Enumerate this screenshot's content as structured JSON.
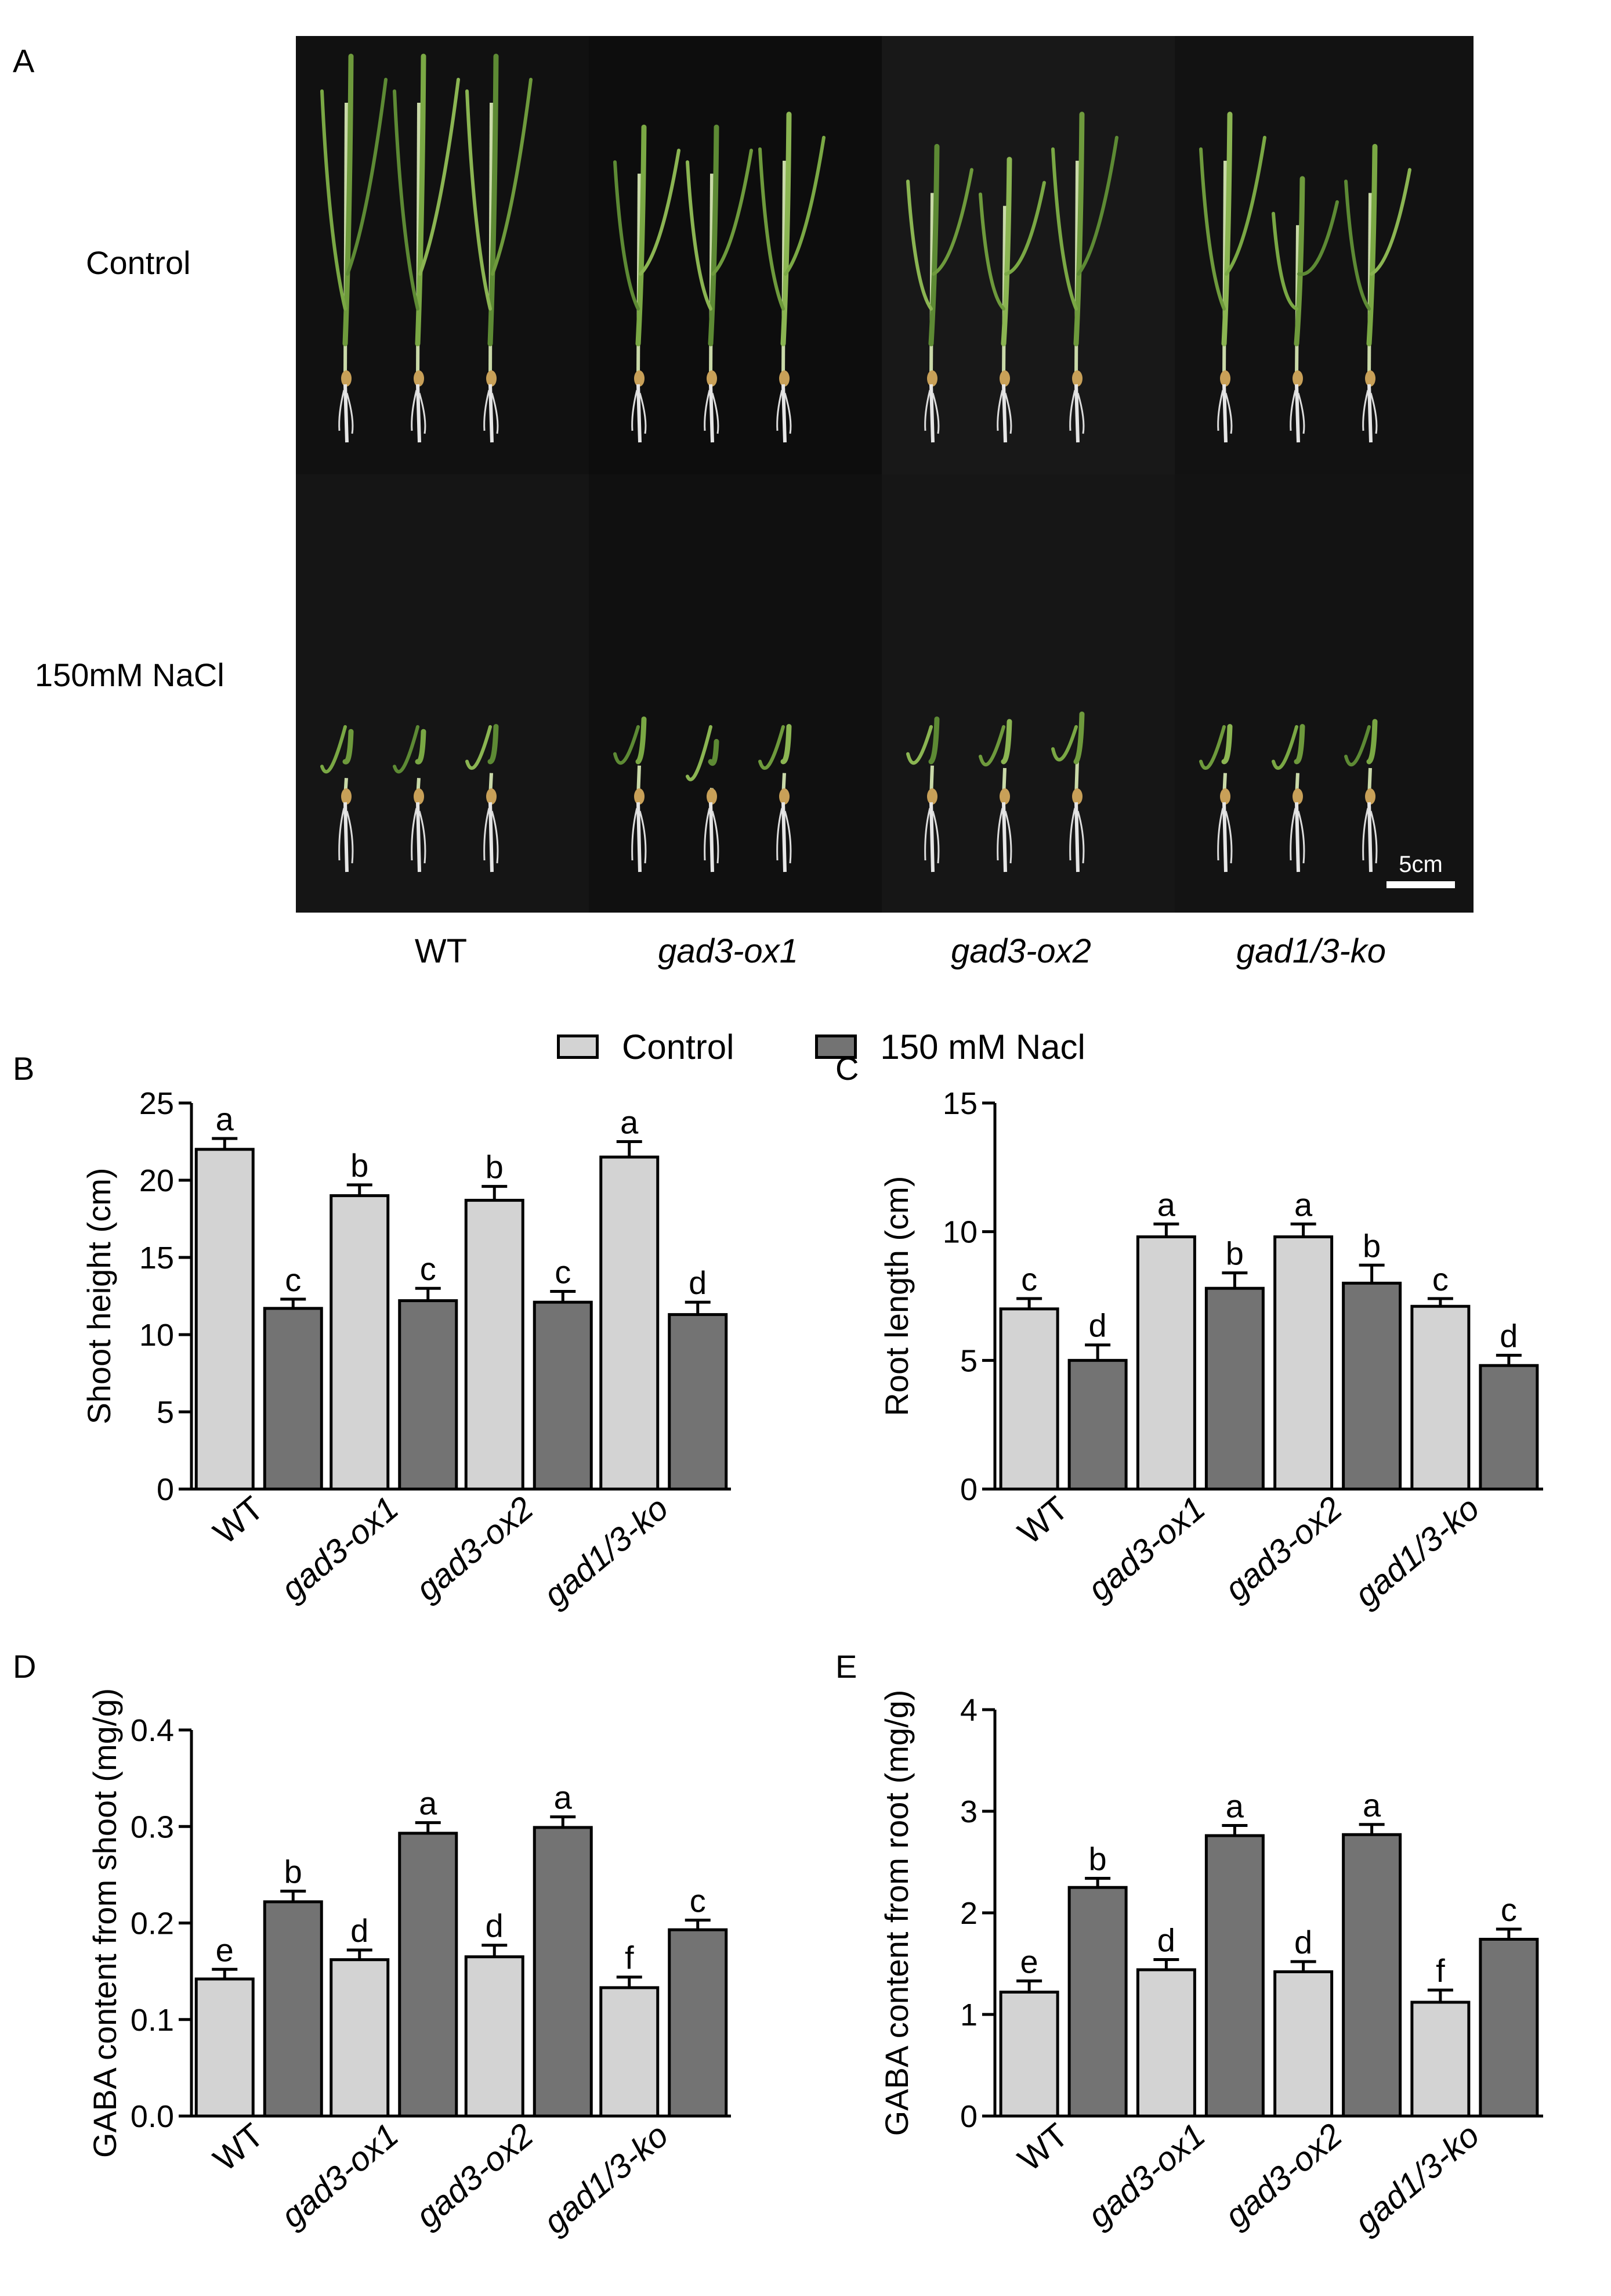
{
  "figure": {
    "panel_a": {
      "letter": "A",
      "row_labels": [
        "Control",
        "150mM NaCl"
      ],
      "genotypes": [
        "WT",
        "gad3-ox1",
        "gad3-ox2",
        "gad1/3-ko"
      ],
      "scale_bar": "5cm"
    },
    "legend": [
      {
        "label": "Control",
        "color": "#d3d3d3"
      },
      {
        "label": "150 mM Nacl",
        "color": "#737373"
      }
    ]
  },
  "chart_data": [
    {
      "panel": "B",
      "type": "bar",
      "categories": [
        "WT",
        "gad3-ox1",
        "gad3-ox2",
        "gad1/3-ko"
      ],
      "ylabel": "Shoot height (cm)",
      "ylim": [
        0,
        25
      ],
      "yticks": [
        0,
        5,
        10,
        15,
        20,
        25
      ],
      "series": [
        {
          "name": "Control",
          "color": "#d3d3d3",
          "values": [
            22.0,
            19.0,
            18.7,
            21.5
          ],
          "errors": [
            0.7,
            0.7,
            0.9,
            1.0
          ],
          "letters": [
            "a",
            "b",
            "b",
            "a"
          ]
        },
        {
          "name": "150 mM Nacl",
          "color": "#737373",
          "values": [
            11.7,
            12.2,
            12.1,
            11.3
          ],
          "errors": [
            0.6,
            0.8,
            0.7,
            0.8
          ],
          "letters": [
            "c",
            "c",
            "c",
            "d"
          ]
        }
      ]
    },
    {
      "panel": "C",
      "type": "bar",
      "categories": [
        "WT",
        "gad3-ox1",
        "gad3-ox2",
        "gad1/3-ko"
      ],
      "ylabel": "Root length (cm)",
      "ylim": [
        0,
        15
      ],
      "yticks": [
        0,
        5,
        10,
        15
      ],
      "series": [
        {
          "name": "Control",
          "color": "#d3d3d3",
          "values": [
            7.0,
            9.8,
            9.8,
            7.1
          ],
          "errors": [
            0.4,
            0.5,
            0.5,
            0.3
          ],
          "letters": [
            "c",
            "a",
            "a",
            "c"
          ]
        },
        {
          "name": "150 mM Nacl",
          "color": "#737373",
          "values": [
            5.0,
            7.8,
            8.0,
            4.8
          ],
          "errors": [
            0.6,
            0.6,
            0.7,
            0.4
          ],
          "letters": [
            "d",
            "b",
            "b",
            "d"
          ]
        }
      ]
    },
    {
      "panel": "D",
      "type": "bar",
      "categories": [
        "WT",
        "gad3-ox1",
        "gad3-ox2",
        "gad1/3-ko"
      ],
      "ylabel": "GABA content from shoot (mg/g)",
      "ylim": [
        0,
        0.4
      ],
      "yticks": [
        "0.0",
        "0.1",
        "0.2",
        "0.3",
        "0.4"
      ],
      "series": [
        {
          "name": "Control",
          "color": "#d3d3d3",
          "values": [
            0.142,
            0.162,
            0.165,
            0.133
          ],
          "errors": [
            0.01,
            0.01,
            0.012,
            0.011
          ],
          "letters": [
            "e",
            "d",
            "d",
            "f"
          ]
        },
        {
          "name": "150 mM Nacl",
          "color": "#737373",
          "values": [
            0.222,
            0.293,
            0.299,
            0.193
          ],
          "errors": [
            0.011,
            0.011,
            0.011,
            0.01
          ],
          "letters": [
            "b",
            "a",
            "a",
            "c"
          ]
        }
      ]
    },
    {
      "panel": "E",
      "type": "bar",
      "categories": [
        "WT",
        "gad3-ox1",
        "gad3-ox2",
        "gad1/3-ko"
      ],
      "ylabel": "GABA content from root (mg/g)",
      "ylim": [
        0,
        4
      ],
      "yticks": [
        0,
        1,
        2,
        3,
        4
      ],
      "series": [
        {
          "name": "Control",
          "color": "#d3d3d3",
          "values": [
            1.22,
            1.44,
            1.42,
            1.12
          ],
          "errors": [
            0.11,
            0.1,
            0.1,
            0.12
          ],
          "letters": [
            "e",
            "d",
            "d",
            "f"
          ]
        },
        {
          "name": "150 mM Nacl",
          "color": "#737373",
          "values": [
            2.25,
            2.76,
            2.77,
            1.74
          ],
          "errors": [
            0.09,
            0.1,
            0.1,
            0.1
          ],
          "letters": [
            "b",
            "a",
            "a",
            "c"
          ]
        }
      ]
    }
  ]
}
